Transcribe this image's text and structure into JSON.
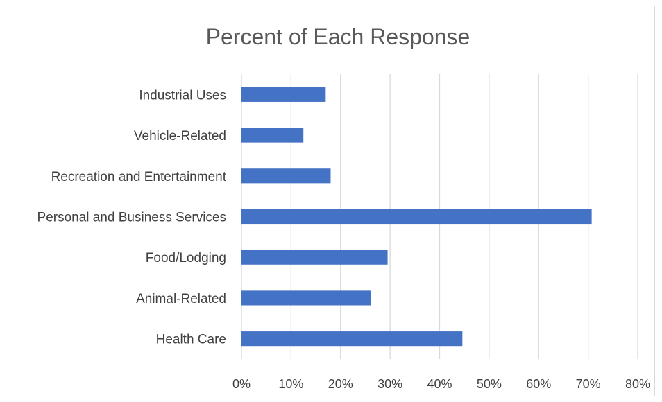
{
  "chart_data": {
    "type": "bar",
    "orientation": "horizontal",
    "title": "Percent of Each Response",
    "xlabel": "",
    "ylabel": "",
    "categories": [
      "Industrial Uses",
      "Vehicle-Related",
      "Recreation and Entertainment",
      "Personal and Business Services",
      "Food/Lodging",
      "Animal-Related",
      "Health Care"
    ],
    "values": [
      17,
      12.5,
      18,
      70.7,
      29.5,
      26.2,
      44.6
    ],
    "value_unit": "%",
    "xlim": [
      0,
      80
    ],
    "ticks": [
      "0%",
      "10%",
      "20%",
      "30%",
      "40%",
      "50%",
      "60%",
      "70%",
      "80%"
    ],
    "grid": true,
    "legend": "none",
    "bar_color": "#4472c4"
  }
}
